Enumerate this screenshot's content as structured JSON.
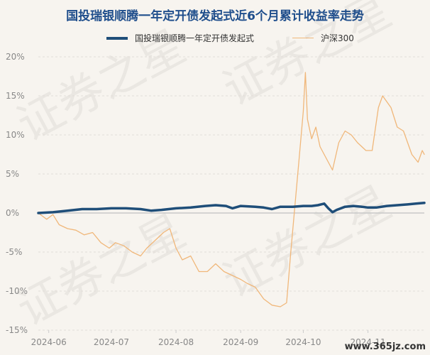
{
  "chart_data": {
    "type": "line",
    "title": "国投瑞银顺腾一年定开债发起式近6个月累计收益率走势",
    "xlabel": "",
    "ylabel": "",
    "ylim": [
      -15,
      20
    ],
    "yticks": [
      20,
      15,
      10,
      5,
      0,
      -5,
      -10,
      -15
    ],
    "ytick_labels": [
      "20%",
      "15%",
      "10%",
      "5%",
      "0%",
      "-5%",
      "-10%",
      "-15%"
    ],
    "xlim": [
      "2024-05-27",
      "2024-11-28"
    ],
    "xticks": [
      "2024-06-01",
      "2024-07-01",
      "2024-08-01",
      "2024-09-01",
      "2024-10-01",
      "2024-11-01"
    ],
    "xtick_labels": [
      "2024-06",
      "2024-07",
      "2024-08",
      "2024-09",
      "2024-10",
      "2024-11"
    ],
    "grid": true,
    "legend_position": "top",
    "series": [
      {
        "name": "国投瑞银顺腾一年定开债发起式",
        "color": "#1f4e79",
        "points": [
          [
            "2024-05-27",
            0.0
          ],
          [
            "2024-06-03",
            0.1
          ],
          [
            "2024-06-10",
            0.3
          ],
          [
            "2024-06-17",
            0.5
          ],
          [
            "2024-06-24",
            0.5
          ],
          [
            "2024-07-01",
            0.6
          ],
          [
            "2024-07-08",
            0.6
          ],
          [
            "2024-07-15",
            0.5
          ],
          [
            "2024-07-20",
            0.3
          ],
          [
            "2024-07-25",
            0.4
          ],
          [
            "2024-08-01",
            0.6
          ],
          [
            "2024-08-08",
            0.7
          ],
          [
            "2024-08-15",
            0.9
          ],
          [
            "2024-08-20",
            1.0
          ],
          [
            "2024-08-25",
            0.9
          ],
          [
            "2024-08-28",
            0.6
          ],
          [
            "2024-09-01",
            0.9
          ],
          [
            "2024-09-08",
            0.8
          ],
          [
            "2024-09-12",
            0.7
          ],
          [
            "2024-09-16",
            0.5
          ],
          [
            "2024-09-20",
            0.8
          ],
          [
            "2024-09-26",
            0.8
          ],
          [
            "2024-10-01",
            0.9
          ],
          [
            "2024-10-05",
            0.9
          ],
          [
            "2024-10-08",
            1.0
          ],
          [
            "2024-10-11",
            1.2
          ],
          [
            "2024-10-13",
            0.6
          ],
          [
            "2024-10-15",
            0.1
          ],
          [
            "2024-10-17",
            0.4
          ],
          [
            "2024-10-21",
            0.8
          ],
          [
            "2024-10-25",
            0.9
          ],
          [
            "2024-10-29",
            0.8
          ],
          [
            "2024-11-01",
            0.7
          ],
          [
            "2024-11-05",
            0.7
          ],
          [
            "2024-11-10",
            0.9
          ],
          [
            "2024-11-15",
            1.0
          ],
          [
            "2024-11-20",
            1.1
          ],
          [
            "2024-11-24",
            1.2
          ],
          [
            "2024-11-28",
            1.3
          ]
        ]
      },
      {
        "name": "沪深300",
        "color": "#f0b77a",
        "points": [
          [
            "2024-05-27",
            0.0
          ],
          [
            "2024-05-31",
            -0.8
          ],
          [
            "2024-06-03",
            -0.2
          ],
          [
            "2024-06-06",
            -1.5
          ],
          [
            "2024-06-10",
            -2.0
          ],
          [
            "2024-06-14",
            -2.2
          ],
          [
            "2024-06-18",
            -2.8
          ],
          [
            "2024-06-22",
            -2.5
          ],
          [
            "2024-06-26",
            -3.8
          ],
          [
            "2024-06-30",
            -4.5
          ],
          [
            "2024-07-03",
            -3.8
          ],
          [
            "2024-07-07",
            -4.2
          ],
          [
            "2024-07-11",
            -5.0
          ],
          [
            "2024-07-15",
            -5.5
          ],
          [
            "2024-07-18",
            -4.5
          ],
          [
            "2024-07-22",
            -3.5
          ],
          [
            "2024-07-26",
            -2.5
          ],
          [
            "2024-07-29",
            -2.0
          ],
          [
            "2024-08-01",
            -4.5
          ],
          [
            "2024-08-04",
            -6.0
          ],
          [
            "2024-08-08",
            -5.5
          ],
          [
            "2024-08-12",
            -7.5
          ],
          [
            "2024-08-16",
            -7.5
          ],
          [
            "2024-08-20",
            -6.5
          ],
          [
            "2024-08-24",
            -7.5
          ],
          [
            "2024-08-28",
            -8.0
          ],
          [
            "2024-09-01",
            -8.5
          ],
          [
            "2024-09-04",
            -9.0
          ],
          [
            "2024-09-08",
            -9.5
          ],
          [
            "2024-09-12",
            -11.0
          ],
          [
            "2024-09-16",
            -11.8
          ],
          [
            "2024-09-20",
            -12.0
          ],
          [
            "2024-09-23",
            -11.5
          ],
          [
            "2024-09-25",
            -5.0
          ],
          [
            "2024-09-27",
            1.0
          ],
          [
            "2024-09-29",
            7.0
          ],
          [
            "2024-10-01",
            13.0
          ],
          [
            "2024-10-02",
            18.0
          ],
          [
            "2024-10-03",
            12.0
          ],
          [
            "2024-10-05",
            9.5
          ],
          [
            "2024-10-07",
            11.0
          ],
          [
            "2024-10-09",
            8.5
          ],
          [
            "2024-10-12",
            7.0
          ],
          [
            "2024-10-15",
            5.5
          ],
          [
            "2024-10-18",
            9.0
          ],
          [
            "2024-10-21",
            10.5
          ],
          [
            "2024-10-24",
            10.0
          ],
          [
            "2024-10-27",
            9.0
          ],
          [
            "2024-10-31",
            8.0
          ],
          [
            "2024-11-03",
            8.0
          ],
          [
            "2024-11-06",
            13.5
          ],
          [
            "2024-11-08",
            15.0
          ],
          [
            "2024-11-12",
            13.5
          ],
          [
            "2024-11-15",
            11.0
          ],
          [
            "2024-11-18",
            10.5
          ],
          [
            "2024-11-22",
            7.5
          ],
          [
            "2024-11-25",
            6.5
          ],
          [
            "2024-11-27",
            8.0
          ],
          [
            "2024-11-28",
            7.5
          ]
        ]
      }
    ]
  },
  "watermark_text": "证券之星",
  "site_watermark": "www.365jz.com"
}
